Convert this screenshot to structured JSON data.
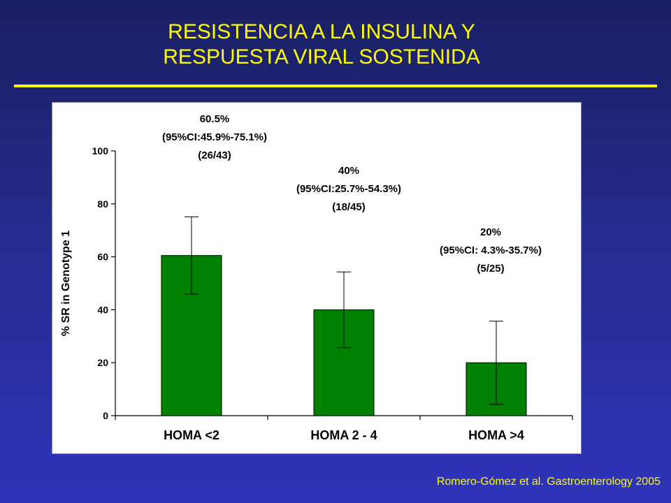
{
  "slide": {
    "title_line1": "RESISTENCIA A LA INSULINA Y",
    "title_line2": "RESPUESTA VIRAL SOSTENIDA",
    "citation": "Romero-Gómez et al. Gastroenterology 2005"
  },
  "colors": {
    "background": "#252b8c",
    "title": "#ffff00",
    "bar_fill": "#008000",
    "panel": "#ffffff"
  },
  "chart_data": {
    "type": "bar",
    "ylabel": "% SR in Genotype 1",
    "ylim": [
      0,
      100
    ],
    "yticks": [
      0,
      20,
      40,
      60,
      80,
      100
    ],
    "categories": [
      "HOMA <2",
      "HOMA 2 - 4",
      "HOMA >4"
    ],
    "values": [
      60.5,
      40,
      20
    ],
    "error_low": [
      45.9,
      25.7,
      4.3
    ],
    "error_high": [
      75.1,
      54.3,
      35.7
    ],
    "annotations": [
      {
        "lines": [
          "60.5%",
          "(95%CI:45.9%-75.1%)",
          "(26/43)"
        ]
      },
      {
        "lines": [
          "40%",
          "(95%CI:25.7%-54.3%)",
          "(18/45)"
        ]
      },
      {
        "lines": [
          "20%",
          "(95%CI: 4.3%-35.7%)",
          "(5/25)"
        ]
      }
    ],
    "grid": false,
    "legend": "none"
  }
}
